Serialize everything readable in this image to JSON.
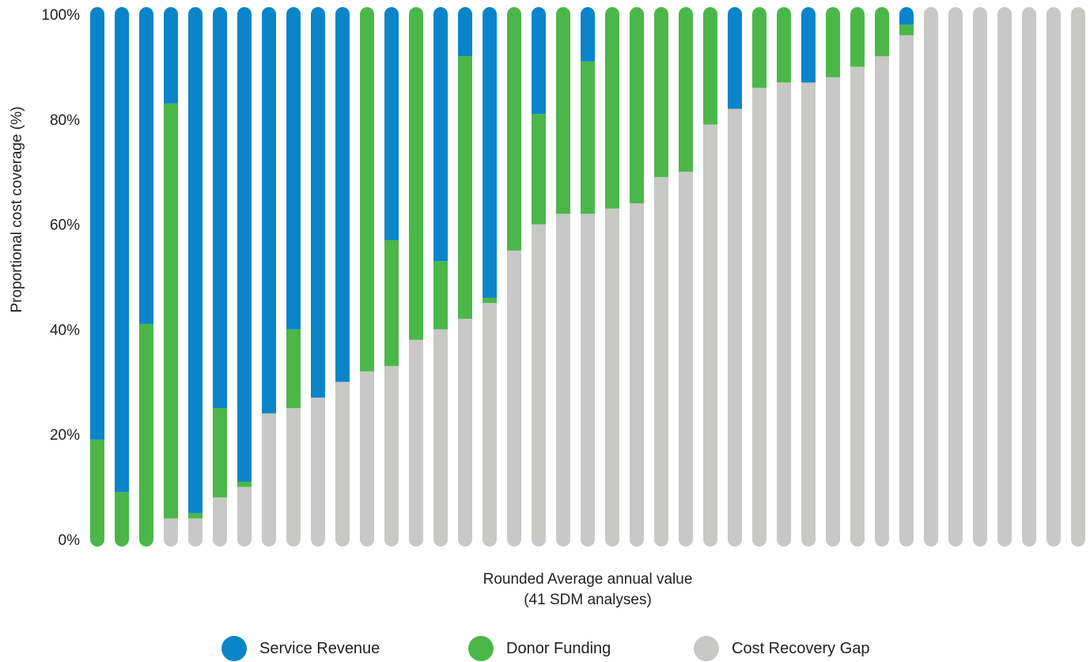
{
  "chart_data": {
    "type": "bar",
    "stacked": true,
    "title": "",
    "ylabel": "Proportional cost coverage (%)",
    "xlabel_line1": "Rounded Average annual value",
    "xlabel_line2": "(41 SDM analyses)",
    "ylim": [
      0,
      100
    ],
    "yticks": [
      "0%",
      "20%",
      "40%",
      "60%",
      "80%",
      "100%"
    ],
    "ytick_values": [
      0,
      20,
      40,
      60,
      80,
      100
    ],
    "categories_count": 41,
    "legend_position": "bottom",
    "series": [
      {
        "name": "Cost Recovery Gap",
        "color": "#c8c8c6",
        "values": [
          0,
          0,
          0,
          4,
          4,
          8,
          10,
          24,
          25,
          27,
          30,
          32,
          33,
          38,
          40,
          42,
          45,
          55,
          60,
          62,
          62,
          63,
          64,
          69,
          70,
          79,
          82,
          86,
          87,
          87,
          88,
          90,
          92,
          96,
          100,
          100,
          100,
          100,
          100,
          100,
          100
        ]
      },
      {
        "name": "Donor Funding",
        "color": "#4bb749",
        "values": [
          19,
          9,
          41,
          79,
          1,
          17,
          1,
          0,
          15,
          0,
          0,
          68,
          24,
          62,
          13,
          50,
          1,
          45,
          21,
          38,
          29,
          37,
          36,
          31,
          30,
          21,
          0,
          14,
          13,
          0,
          12,
          10,
          8,
          2,
          0,
          0,
          0,
          0,
          0,
          0,
          0
        ]
      },
      {
        "name": "Service Revenue",
        "color": "#0a85c9",
        "values": [
          81,
          91,
          59,
          17,
          95,
          75,
          89,
          76,
          60,
          73,
          70,
          0,
          43,
          0,
          47,
          8,
          54,
          0,
          19,
          0,
          9,
          0,
          0,
          0,
          0,
          0,
          18,
          0,
          0,
          13,
          0,
          0,
          0,
          2,
          0,
          0,
          0,
          0,
          0,
          0,
          0
        ]
      }
    ],
    "legend": [
      {
        "name": "Service Revenue",
        "color": "#0a85c9"
      },
      {
        "name": "Donor Funding",
        "color": "#4bb749"
      },
      {
        "name": "Cost Recovery Gap",
        "color": "#c8c8c6"
      }
    ]
  }
}
